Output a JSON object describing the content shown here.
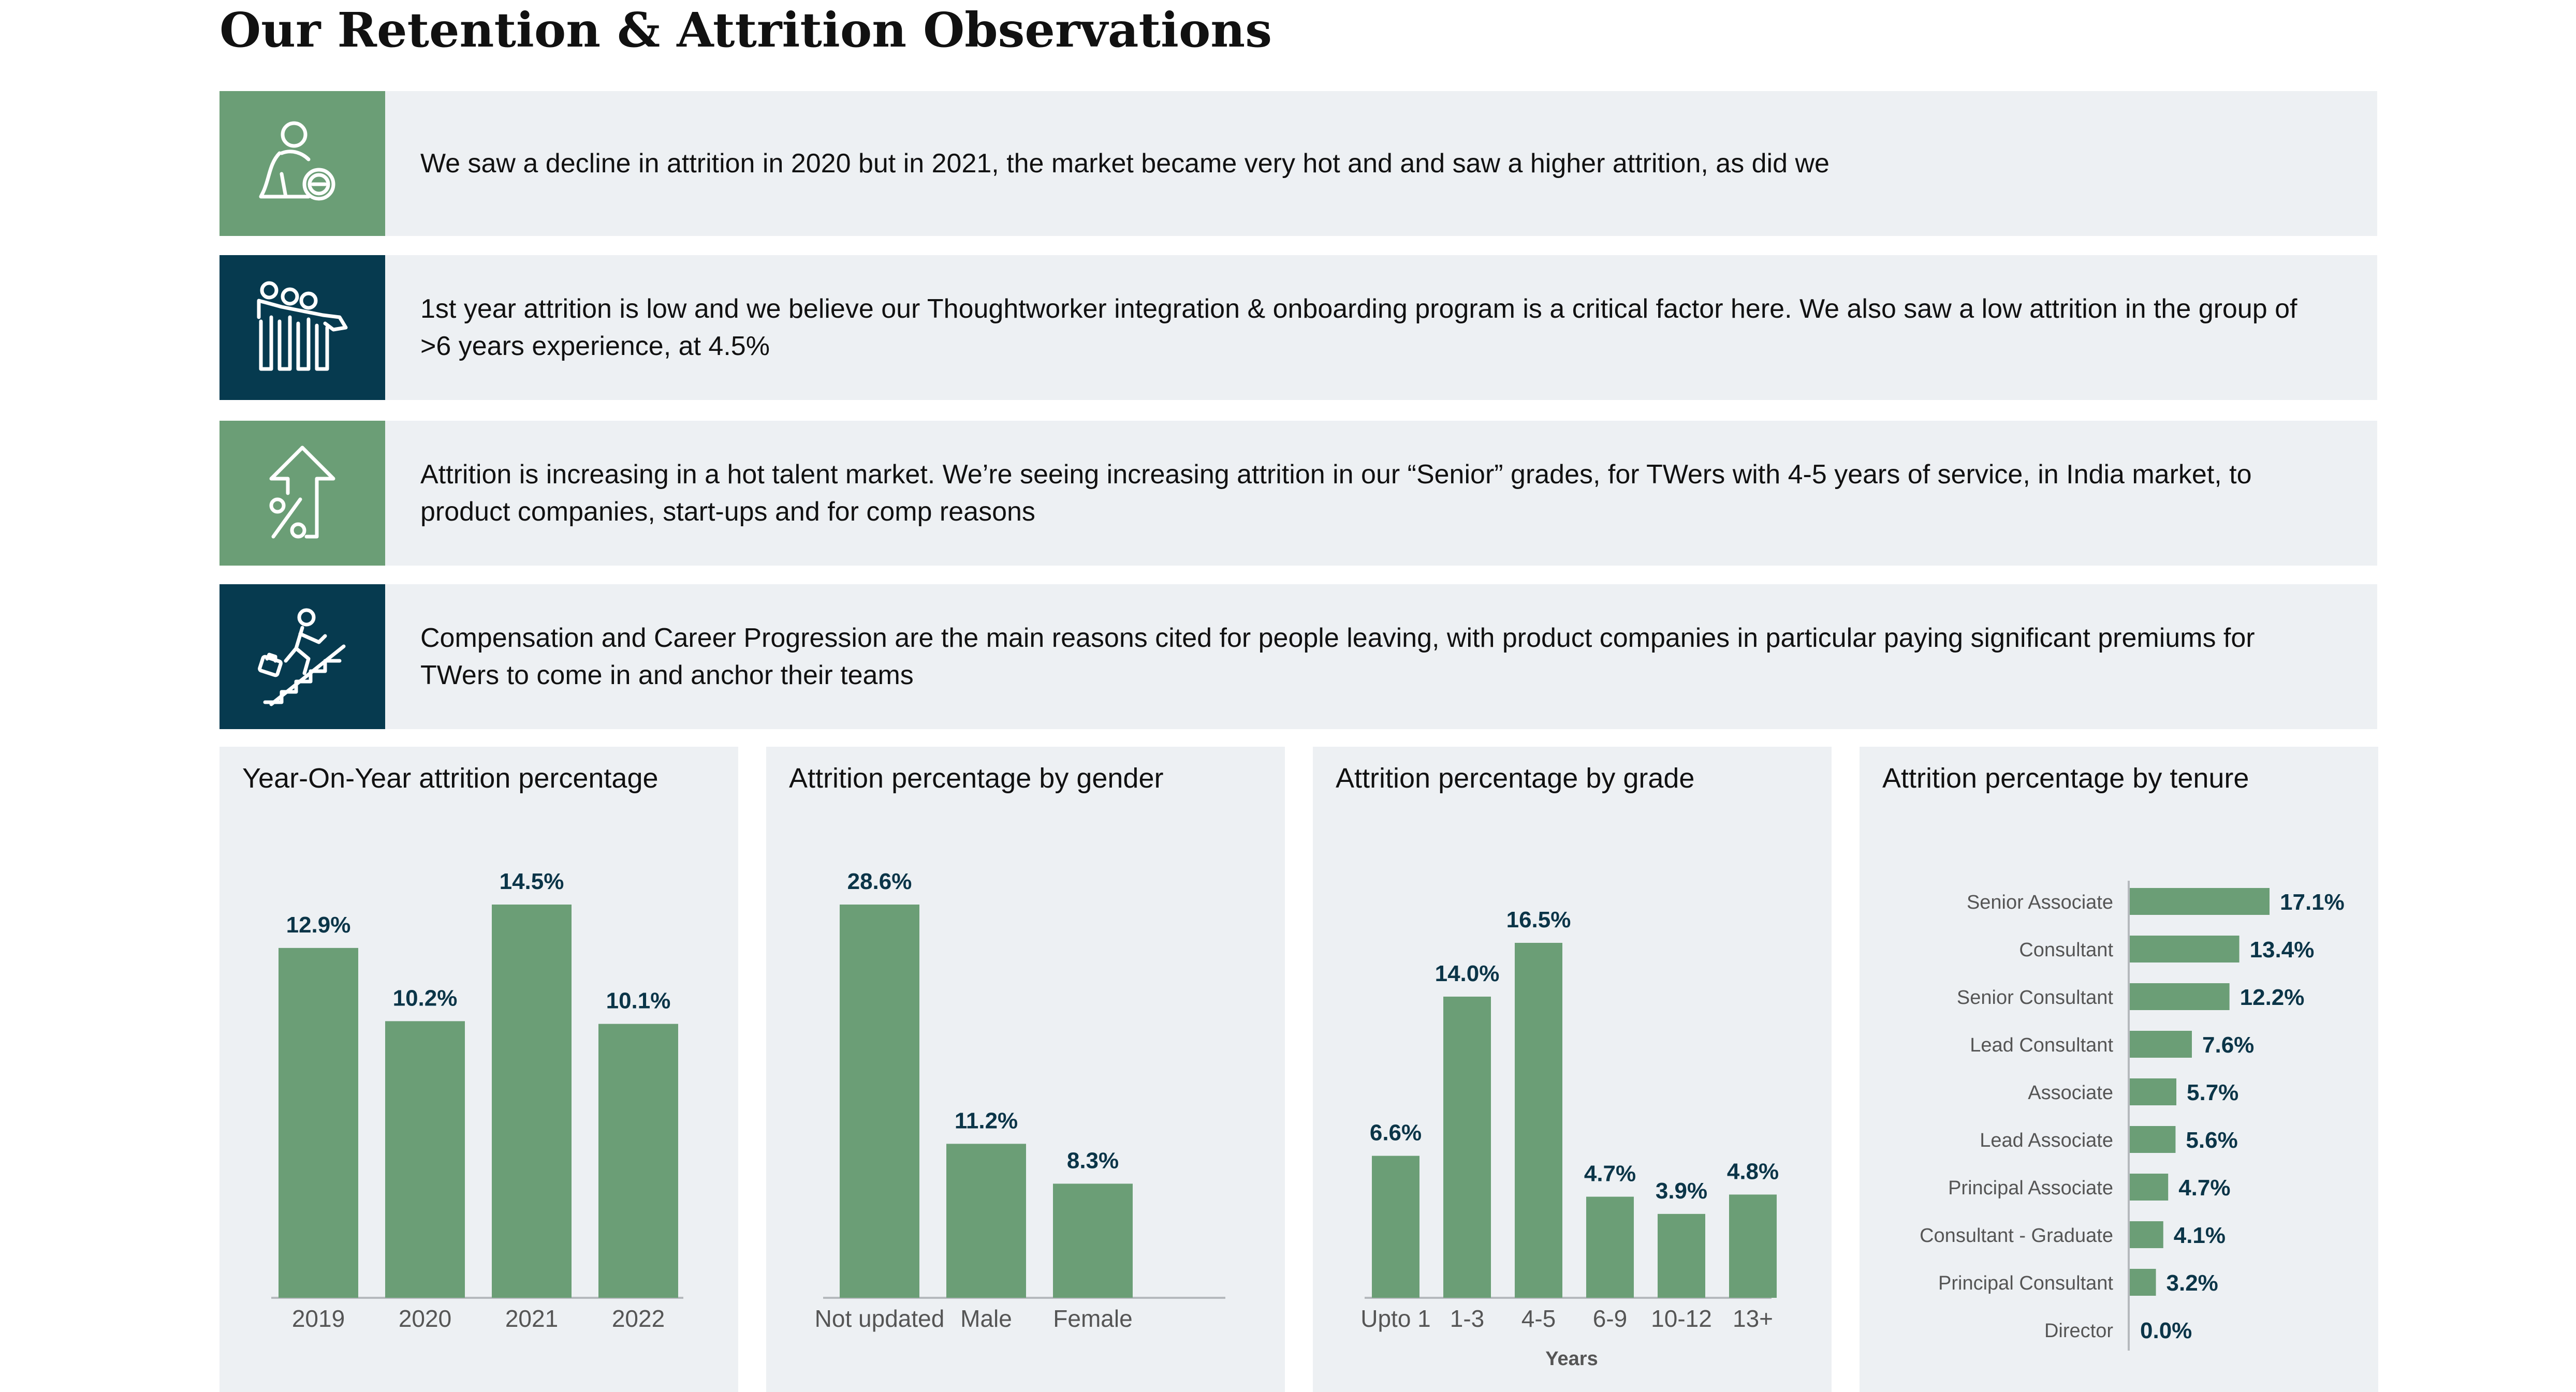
{
  "page": {
    "title": "Our Retention &  Attrition Observations"
  },
  "observations": [
    {
      "icon": "person-minus-icon",
      "text": "We saw a decline in attrition in 2020 but in 2021, the market became very hot and and saw a higher attrition, as did we"
    },
    {
      "icon": "team-group-icon",
      "text": "1st year attrition is low and we believe our Thoughtworker integration & onboarding program is a critical factor here. We also saw a low attrition in the group of >6 years experience, at 4.5%"
    },
    {
      "icon": "percent-up-arrow-icon",
      "text": "Attrition is increasing in a hot talent market. We’re seeing increasing attrition in our “Senior” grades, for TWers with 4-5 years of service, in India market, to product companies, start-ups and for comp reasons"
    },
    {
      "icon": "climbing-stairs-icon",
      "text": "Compensation and Career Progression are the main reasons cited for people leaving, with product companies in particular paying significant premiums for TWers to come in and anchor their teams"
    }
  ],
  "colors": {
    "bar": "#6b9e76",
    "icon_green": "#6b9e76",
    "icon_navy": "#063a4f",
    "panel_bg": "#edf0f3",
    "value_label": "#0b3548"
  },
  "chart_data": [
    {
      "type": "bar",
      "title": "Year-On-Year attrition percentage",
      "categories": [
        "2019",
        "2020",
        "2021",
        "2022"
      ],
      "values": [
        12.9,
        10.2,
        14.5,
        10.1
      ],
      "labels": [
        "12.9%",
        "10.2%",
        "14.5%",
        "10.1%"
      ],
      "xlabel": "",
      "ylim": [
        0,
        14.5
      ]
    },
    {
      "type": "bar",
      "title": "Attrition percentage by gender",
      "categories": [
        "Not updated",
        "Male",
        "Female"
      ],
      "values": [
        28.6,
        11.2,
        8.3
      ],
      "labels": [
        "28.6%",
        "11.2%",
        "8.3%"
      ],
      "xlabel": "",
      "ylim": [
        0,
        28.6
      ]
    },
    {
      "type": "bar",
      "title": "Attrition percentage by grade",
      "categories": [
        "Upto 1",
        "1-3",
        "4-5",
        "6-9",
        "10-12",
        "13+"
      ],
      "values": [
        6.6,
        14.0,
        16.5,
        4.7,
        3.9,
        4.8
      ],
      "labels": [
        "6.6%",
        "14.0%",
        "16.5%",
        "4.7%",
        "3.9%",
        "4.8%"
      ],
      "xlabel": "Years",
      "ylim": [
        0,
        16.5
      ]
    },
    {
      "type": "bar",
      "orientation": "horizontal",
      "title": "Attrition percentage by tenure",
      "categories": [
        "Senior Associate",
        "Consultant",
        "Senior Consultant",
        "Lead Consultant",
        "Associate",
        "Lead Associate",
        "Principal Associate",
        "Consultant - Graduate",
        "Principal Consultant",
        "Director"
      ],
      "values": [
        17.1,
        13.4,
        12.2,
        7.6,
        5.7,
        5.6,
        4.7,
        4.1,
        3.2,
        0.0
      ],
      "labels": [
        "17.1%",
        "13.4%",
        "12.2%",
        "7.6%",
        "5.7%",
        "5.6%",
        "4.7%",
        "4.1%",
        "3.2%",
        "0.0%"
      ],
      "xlabel": "",
      "xlim": [
        0,
        17.1
      ]
    }
  ]
}
